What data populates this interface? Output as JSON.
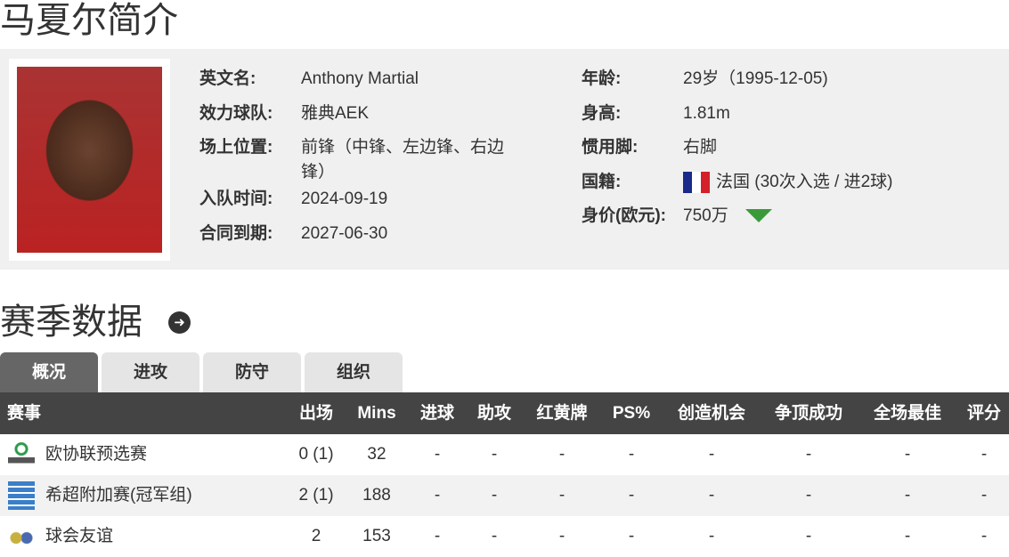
{
  "title": "马夏尔简介",
  "profile": {
    "left": [
      {
        "label": "英文名:",
        "value": "Anthony Martial"
      },
      {
        "label": "效力球队:",
        "value": "雅典AEK"
      },
      {
        "label": "场上位置:",
        "value": "前锋（中锋、左边锋、右边",
        "value2": "锋）"
      },
      {
        "label": "入队时间:",
        "value": "2024-09-19"
      },
      {
        "label": "合同到期:",
        "value": "2027-06-30"
      }
    ],
    "right": [
      {
        "label": "年龄:",
        "value": "29岁（1995-12-05)"
      },
      {
        "label": "身高:",
        "value": "1.81m"
      },
      {
        "label": "惯用脚:",
        "value": "右脚"
      },
      {
        "label": "国籍:",
        "value": "法国 (30次入选 / 进2球)",
        "icon": "france-flag-icon"
      },
      {
        "label": "身价(欧元):",
        "value": "750万",
        "trend": "down",
        "trend_color": "#3a9a3a"
      }
    ]
  },
  "section_title": "赛季数据",
  "tabs": [
    "概况",
    "进攻",
    "防守",
    "组织"
  ],
  "active_tab": "概况",
  "table": {
    "headers": [
      "赛事",
      "出场",
      "Mins",
      "进球",
      "助攻",
      "红黄牌",
      "PS%",
      "创造机会",
      "争顶成功",
      "全场最佳",
      "评分"
    ],
    "rows": [
      [
        "欧协联预选赛",
        "0 (1)",
        "32",
        "-",
        "-",
        "-",
        "-",
        "-",
        "-",
        "-",
        "-"
      ],
      [
        "希超附加赛(冠军组)",
        "2 (1)",
        "188",
        "-",
        "-",
        "-",
        "-",
        "-",
        "-",
        "-",
        "-"
      ],
      [
        "球会友谊",
        "2",
        "153",
        "-",
        "-",
        "-",
        "-",
        "-",
        "-",
        "-",
        "-"
      ]
    ]
  }
}
